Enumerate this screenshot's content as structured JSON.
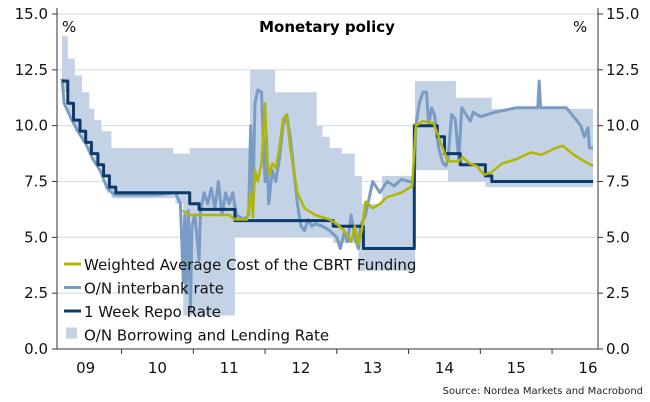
{
  "chart_data": {
    "type": "line",
    "title": "Monetary policy",
    "unit_left": "%",
    "unit_right": "%",
    "source": "Source: Nordea Markets and Macrobond",
    "xlim": [
      2009.1,
      2016.64
    ],
    "ylim": [
      0,
      15
    ],
    "yticks": [
      "0.0",
      "2.5",
      "5.0",
      "7.5",
      "10.0",
      "12.5",
      "15.0"
    ],
    "xticks": [
      "09",
      "10",
      "11",
      "12",
      "13",
      "14",
      "15",
      "16"
    ],
    "grid": true,
    "legend_position": "bottom-left",
    "colors": {
      "wacf": "#b3b600",
      "interbank": "#7a9cc4",
      "repo": "#0b3a6b",
      "band": "#c3d3e5",
      "grid": "#d6e0ea"
    },
    "series": [
      {
        "name": "Weighted Average Cost of the CBRT Funding",
        "key": "wacf",
        "kind": "line",
        "points": [
          [
            2010.85,
            6.2
          ],
          [
            2010.95,
            6.0
          ],
          [
            2011.5,
            6.0
          ],
          [
            2011.58,
            5.8
          ],
          [
            2011.75,
            5.8
          ],
          [
            2011.8,
            7.0
          ],
          [
            2011.83,
            5.9
          ],
          [
            2011.86,
            8.0
          ],
          [
            2011.9,
            7.5
          ],
          [
            2011.95,
            8.3
          ],
          [
            2012.0,
            11.0
          ],
          [
            2012.03,
            8.5
          ],
          [
            2012.06,
            7.8
          ],
          [
            2012.1,
            8.3
          ],
          [
            2012.15,
            8.1
          ],
          [
            2012.2,
            9.0
          ],
          [
            2012.25,
            10.3
          ],
          [
            2012.3,
            10.5
          ],
          [
            2012.35,
            9.0
          ],
          [
            2012.4,
            8.0
          ],
          [
            2012.45,
            7.0
          ],
          [
            2012.55,
            6.3
          ],
          [
            2012.7,
            6.0
          ],
          [
            2012.9,
            5.8
          ],
          [
            2013.0,
            5.6
          ],
          [
            2013.1,
            5.3
          ],
          [
            2013.2,
            4.8
          ],
          [
            2013.25,
            5.5
          ],
          [
            2013.3,
            4.7
          ],
          [
            2013.35,
            5.3
          ],
          [
            2013.4,
            6.6
          ],
          [
            2013.5,
            6.3
          ],
          [
            2013.6,
            6.5
          ],
          [
            2013.7,
            6.8
          ],
          [
            2013.9,
            7.0
          ],
          [
            2014.05,
            7.3
          ],
          [
            2014.1,
            10.0
          ],
          [
            2014.2,
            10.2
          ],
          [
            2014.35,
            10.1
          ],
          [
            2014.45,
            9.2
          ],
          [
            2014.55,
            8.4
          ],
          [
            2014.7,
            8.4
          ],
          [
            2014.75,
            8.6
          ],
          [
            2014.85,
            8.3
          ],
          [
            2014.95,
            8.2
          ],
          [
            2015.05,
            7.8
          ],
          [
            2015.15,
            7.9
          ],
          [
            2015.3,
            8.3
          ],
          [
            2015.5,
            8.5
          ],
          [
            2015.7,
            8.8
          ],
          [
            2015.85,
            8.7
          ],
          [
            2016.05,
            9.0
          ],
          [
            2016.15,
            9.1
          ],
          [
            2016.3,
            8.7
          ],
          [
            2016.45,
            8.4
          ],
          [
            2016.57,
            8.2
          ]
        ]
      },
      {
        "name": "O/N interbank rate",
        "key": "interbank",
        "kind": "line",
        "points": [
          [
            2009.17,
            12.1
          ],
          [
            2009.2,
            11.0
          ],
          [
            2009.3,
            10.3
          ],
          [
            2009.4,
            9.7
          ],
          [
            2009.5,
            9.2
          ],
          [
            2009.6,
            8.5
          ],
          [
            2009.7,
            8.0
          ],
          [
            2009.8,
            7.2
          ],
          [
            2009.9,
            6.9
          ],
          [
            2010.5,
            6.9
          ],
          [
            2010.75,
            7.0
          ],
          [
            2010.82,
            6.5
          ],
          [
            2010.86,
            3.0
          ],
          [
            2010.88,
            6.0
          ],
          [
            2010.9,
            2.5
          ],
          [
            2010.93,
            6.2
          ],
          [
            2010.96,
            1.8
          ],
          [
            2010.98,
            5.5
          ],
          [
            2011.02,
            6.0
          ],
          [
            2011.08,
            4.0
          ],
          [
            2011.1,
            6.2
          ],
          [
            2011.15,
            7.0
          ],
          [
            2011.2,
            6.5
          ],
          [
            2011.25,
            7.2
          ],
          [
            2011.3,
            6.3
          ],
          [
            2011.35,
            7.5
          ],
          [
            2011.4,
            6.0
          ],
          [
            2011.45,
            7.0
          ],
          [
            2011.5,
            6.5
          ],
          [
            2011.55,
            7.0
          ],
          [
            2011.6,
            6.0
          ],
          [
            2011.7,
            5.8
          ],
          [
            2011.77,
            6.0
          ],
          [
            2011.8,
            10.0
          ],
          [
            2011.83,
            6.5
          ],
          [
            2011.86,
            11.0
          ],
          [
            2011.9,
            11.6
          ],
          [
            2011.95,
            11.5
          ],
          [
            2011.98,
            9.0
          ],
          [
            2012.0,
            7.5
          ],
          [
            2012.02,
            9.5
          ],
          [
            2012.05,
            6.5
          ],
          [
            2012.1,
            8.0
          ],
          [
            2012.15,
            7.5
          ],
          [
            2012.2,
            8.5
          ],
          [
            2012.25,
            10.0
          ],
          [
            2012.3,
            10.5
          ],
          [
            2012.35,
            9.5
          ],
          [
            2012.4,
            8.0
          ],
          [
            2012.45,
            6.5
          ],
          [
            2012.5,
            5.5
          ],
          [
            2012.55,
            5.3
          ],
          [
            2012.6,
            5.8
          ],
          [
            2012.65,
            5.5
          ],
          [
            2012.7,
            5.6
          ],
          [
            2012.8,
            5.5
          ],
          [
            2012.9,
            5.3
          ],
          [
            2013.0,
            5.0
          ],
          [
            2013.05,
            4.5
          ],
          [
            2013.1,
            5.2
          ],
          [
            2013.15,
            4.8
          ],
          [
            2013.2,
            6.0
          ],
          [
            2013.25,
            5.0
          ],
          [
            2013.3,
            4.5
          ],
          [
            2013.33,
            5.5
          ],
          [
            2013.4,
            6.0
          ],
          [
            2013.5,
            7.5
          ],
          [
            2013.6,
            7.0
          ],
          [
            2013.7,
            7.5
          ],
          [
            2013.8,
            7.3
          ],
          [
            2013.9,
            7.6
          ],
          [
            2014.0,
            7.5
          ],
          [
            2014.08,
            7.5
          ],
          [
            2014.1,
            10.0
          ],
          [
            2014.15,
            11.0
          ],
          [
            2014.2,
            11.5
          ],
          [
            2014.25,
            11.5
          ],
          [
            2014.28,
            10.0
          ],
          [
            2014.32,
            10.8
          ],
          [
            2014.36,
            10.5
          ],
          [
            2014.42,
            9.0
          ],
          [
            2014.48,
            8.3
          ],
          [
            2014.52,
            8.2
          ],
          [
            2014.55,
            8.5
          ],
          [
            2014.6,
            10.5
          ],
          [
            2014.65,
            10.3
          ],
          [
            2014.7,
            8.5
          ],
          [
            2014.74,
            10.8
          ],
          [
            2014.8,
            10.5
          ],
          [
            2014.86,
            10.2
          ],
          [
            2014.9,
            10.6
          ],
          [
            2015.0,
            10.4
          ],
          [
            2015.2,
            10.6
          ],
          [
            2015.5,
            10.8
          ],
          [
            2015.8,
            10.8
          ],
          [
            2015.82,
            12.0
          ],
          [
            2015.84,
            10.8
          ],
          [
            2016.0,
            10.8
          ],
          [
            2016.2,
            10.8
          ],
          [
            2016.3,
            10.4
          ],
          [
            2016.4,
            10.0
          ],
          [
            2016.45,
            9.5
          ],
          [
            2016.5,
            9.9
          ],
          [
            2016.52,
            9.0
          ],
          [
            2016.57,
            9.0
          ]
        ]
      },
      {
        "name": "1 Week Repo Rate",
        "key": "repo",
        "kind": "step",
        "points": [
          [
            2009.17,
            12.0
          ],
          [
            2009.25,
            11.0
          ],
          [
            2009.33,
            10.25
          ],
          [
            2009.42,
            9.75
          ],
          [
            2009.5,
            9.25
          ],
          [
            2009.58,
            8.75
          ],
          [
            2009.67,
            8.25
          ],
          [
            2009.75,
            7.75
          ],
          [
            2009.83,
            7.25
          ],
          [
            2009.92,
            7.0
          ],
          [
            2010.95,
            6.5
          ],
          [
            2011.08,
            6.25
          ],
          [
            2011.58,
            5.75
          ],
          [
            2012.95,
            5.5
          ],
          [
            2013.37,
            4.5
          ],
          [
            2014.08,
            10.0
          ],
          [
            2014.4,
            9.5
          ],
          [
            2014.5,
            8.75
          ],
          [
            2014.72,
            8.25
          ],
          [
            2015.07,
            7.75
          ],
          [
            2015.16,
            7.5
          ],
          [
            2016.57,
            7.5
          ]
        ]
      },
      {
        "name": "O/N Borrowing and Lending Rate",
        "key": "band",
        "kind": "step-band",
        "upper": [
          [
            2009.17,
            14.0
          ],
          [
            2009.25,
            13.0
          ],
          [
            2009.35,
            12.25
          ],
          [
            2009.45,
            11.5
          ],
          [
            2009.55,
            10.75
          ],
          [
            2009.62,
            10.25
          ],
          [
            2009.72,
            9.75
          ],
          [
            2009.86,
            9.0
          ],
          [
            2010.72,
            8.75
          ],
          [
            2010.95,
            9.0
          ],
          [
            2011.79,
            12.5
          ],
          [
            2012.14,
            11.5
          ],
          [
            2012.72,
            10.0
          ],
          [
            2012.8,
            9.5
          ],
          [
            2012.9,
            9.0
          ],
          [
            2013.07,
            8.75
          ],
          [
            2013.25,
            7.75
          ],
          [
            2013.35,
            6.5
          ],
          [
            2013.63,
            7.75
          ],
          [
            2014.09,
            12.0
          ],
          [
            2014.66,
            11.25
          ],
          [
            2015.16,
            10.75
          ],
          [
            2016.57,
            10.75
          ]
        ],
        "lower": [
          [
            2009.17,
            11.5
          ],
          [
            2009.25,
            10.5
          ],
          [
            2009.35,
            9.75
          ],
          [
            2009.45,
            9.25
          ],
          [
            2009.55,
            8.75
          ],
          [
            2009.62,
            8.25
          ],
          [
            2009.72,
            7.75
          ],
          [
            2009.8,
            7.0
          ],
          [
            2009.86,
            6.75
          ],
          [
            2010.75,
            6.5
          ],
          [
            2010.86,
            1.5
          ],
          [
            2011.58,
            5.0
          ],
          [
            2012.95,
            4.75
          ],
          [
            2013.3,
            3.5
          ],
          [
            2014.09,
            8.0
          ],
          [
            2014.55,
            7.5
          ],
          [
            2015.07,
            7.25
          ],
          [
            2016.57,
            7.25
          ]
        ]
      }
    ]
  }
}
